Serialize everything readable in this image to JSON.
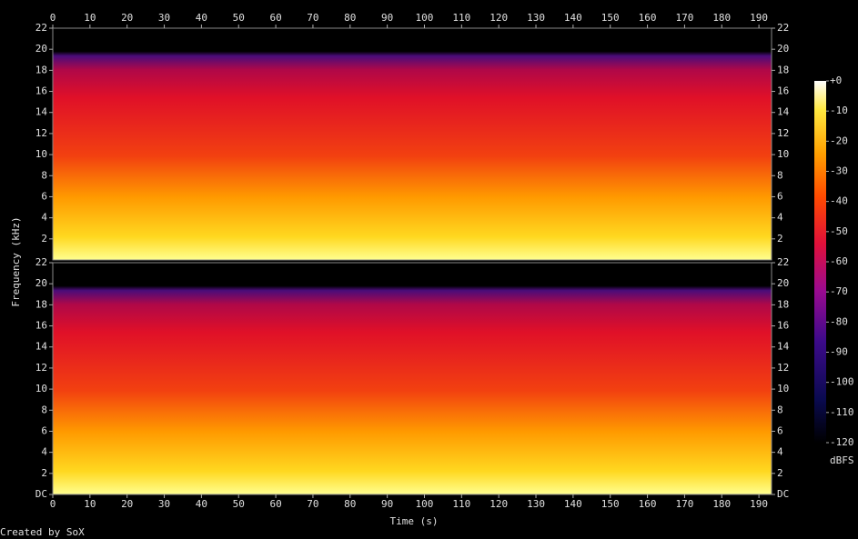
{
  "chart_data": [
    {
      "type": "spectrogram",
      "xlim": [
        0,
        193.4
      ],
      "xticks": [
        0,
        10,
        20,
        30,
        40,
        50,
        60,
        70,
        80,
        90,
        100,
        110,
        120,
        130,
        140,
        150,
        160,
        170,
        180,
        190
      ],
      "ylim": [
        0,
        22
      ],
      "yticks": [
        2,
        4,
        6,
        8,
        10,
        12,
        14,
        16,
        18,
        20,
        22
      ],
      "ylabel": "Frequency (kHz)"
    },
    {
      "type": "spectrogram",
      "xlim": [
        0,
        193.4
      ],
      "xticks": [
        0,
        10,
        20,
        30,
        40,
        50,
        60,
        70,
        80,
        90,
        100,
        110,
        120,
        130,
        140,
        150,
        160,
        170,
        180,
        190
      ],
      "ylim": [
        0,
        22
      ],
      "yticks": [
        {
          "value": 0,
          "label": "DC"
        },
        2,
        4,
        6,
        8,
        10,
        12,
        14,
        16,
        18,
        20,
        22
      ],
      "xlabel": "Time (s)"
    }
  ],
  "colorbar": {
    "label": "dBFS",
    "lim": [
      -120,
      0
    ],
    "ticks": [
      {
        "value": 0,
        "label": "+0"
      },
      -10,
      -20,
      -30,
      -40,
      -50,
      -60,
      -70,
      -80,
      -90,
      -100,
      -110,
      -120
    ]
  },
  "footer": "Created by SoX"
}
